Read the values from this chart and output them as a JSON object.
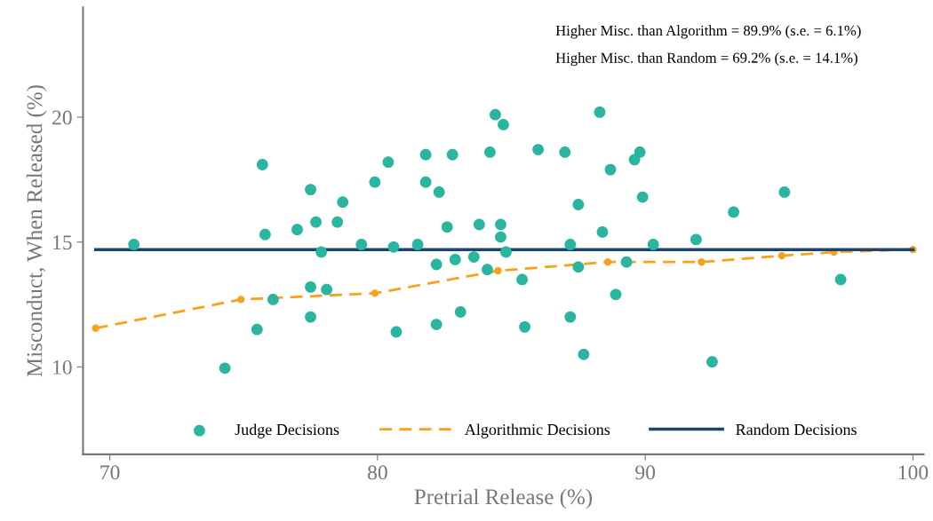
{
  "chart_data": {
    "type": "scatter",
    "xlabel": "Pretrial Release (%)",
    "ylabel": "Misconduct, When Released (%)",
    "xlim": [
      69.0,
      100.4
    ],
    "ylim": [
      6.5,
      24.4
    ],
    "xticks": [
      70,
      80,
      90,
      100
    ],
    "yticks": [
      10,
      15,
      20
    ],
    "grid": false,
    "legend": "bottom",
    "annotations": [
      "Higher Misc. than Algorithm = 89.9% (s.e. = 6.1%)",
      "Higher Misc. than Random = 69.2% (s.e. = 14.1%)"
    ],
    "series": [
      {
        "name": "Judge Decisions",
        "color": "#2ab5a0",
        "marker": "circle",
        "x": [
          70.9,
          74.3,
          75.5,
          75.7,
          75.8,
          76.1,
          77.0,
          77.5,
          77.5,
          77.5,
          77.7,
          77.9,
          78.1,
          78.5,
          78.7,
          79.4,
          79.9,
          80.4,
          80.6,
          80.7,
          81.5,
          81.8,
          81.8,
          82.2,
          82.2,
          82.3,
          82.6,
          82.8,
          82.9,
          83.1,
          83.6,
          83.8,
          84.1,
          84.2,
          84.4,
          84.6,
          84.6,
          84.7,
          84.8,
          85.4,
          85.5,
          86.0,
          87.0,
          87.2,
          87.2,
          87.5,
          87.5,
          87.7,
          88.3,
          88.4,
          88.7,
          88.9,
          89.3,
          89.6,
          89.8,
          89.9,
          90.3,
          91.9,
          92.5,
          93.3,
          95.2,
          97.3
        ],
        "values": [
          14.9,
          9.95,
          11.5,
          18.1,
          15.3,
          12.7,
          15.5,
          17.1,
          13.2,
          12.0,
          15.8,
          14.6,
          13.1,
          15.8,
          16.6,
          14.9,
          17.4,
          18.2,
          14.8,
          11.4,
          14.9,
          18.5,
          17.4,
          14.1,
          11.7,
          17.0,
          15.6,
          18.5,
          14.3,
          12.2,
          14.4,
          15.7,
          13.9,
          18.6,
          20.1,
          15.2,
          15.7,
          19.7,
          14.6,
          13.5,
          11.6,
          18.7,
          18.6,
          14.9,
          12.0,
          16.5,
          14.0,
          10.5,
          20.2,
          15.4,
          17.9,
          12.9,
          14.2,
          18.3,
          18.6,
          16.8,
          14.9,
          15.1,
          10.2,
          16.2,
          17.0,
          13.5
        ]
      },
      {
        "name": "Algorithmic Decisions",
        "type": "line",
        "color": "#f9a11b",
        "marker": "circle",
        "line_style": "dashed",
        "x": [
          69.47,
          74.9,
          79.9,
          84.5,
          88.6,
          92.1,
          95.1,
          97.05,
          100.0
        ],
        "values": [
          11.55,
          12.7,
          12.95,
          13.85,
          14.2,
          14.2,
          14.45,
          14.6,
          14.7
        ]
      },
      {
        "name": "Random Decisions",
        "type": "line",
        "color": "#1a4570",
        "marker": "none",
        "line_style": "solid",
        "x": [
          69.47,
          100.0
        ],
        "values": [
          14.7,
          14.7
        ]
      }
    ]
  }
}
